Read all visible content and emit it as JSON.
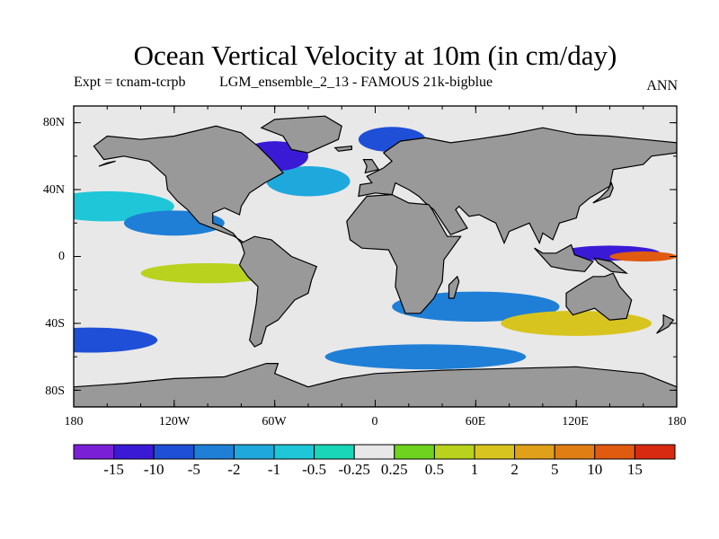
{
  "title": "Ocean Vertical Velocity at 10m (in cm/day)",
  "subtitle": {
    "expt": "Expt = tcnam-tcrpb",
    "run": "LGM_ensemble_2_13 - FAMOUS 21k-bigblue",
    "season": "ANN"
  },
  "axes": {
    "y_ticks": [
      "80N",
      "40N",
      "0",
      "40S",
      "80S"
    ],
    "x_ticks": [
      "180",
      "120W",
      "60W",
      "0",
      "60E",
      "120E",
      "180"
    ]
  },
  "colorbar": {
    "labels": [
      "-15",
      "-10",
      "-5",
      "-2",
      "-1",
      "-0.5",
      "-0.25",
      "0.25",
      "0.5",
      "1",
      "2",
      "5",
      "10",
      "15"
    ],
    "colors": [
      "#7a1fd6",
      "#3b1ad6",
      "#1f4fd6",
      "#1f7fd6",
      "#1fa8dc",
      "#1fc6d8",
      "#19d6b8",
      "#e8e8e8",
      "#6ed21e",
      "#b8d21e",
      "#d8c41e",
      "#e0a01a",
      "#e07e14",
      "#e05a10",
      "#d82a10"
    ]
  },
  "colors": {
    "land": "#999999",
    "ocean_background": "#e8e8e8"
  }
}
